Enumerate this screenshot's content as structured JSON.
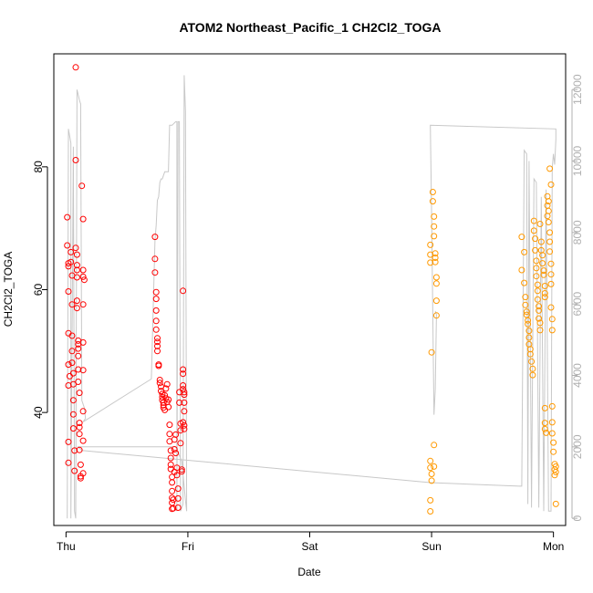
{
  "chart_data": {
    "type": "scatter",
    "title": "ATOM2 Northeast_Pacific_1 CH2Cl2_TOGA",
    "xlabel": "Date",
    "ylabel": "CH2Cl2_TOGA",
    "x_ticks": [
      "Thu",
      "Fri",
      "Sat",
      "Sun",
      "Mon"
    ],
    "x_range_days": [
      -0.1,
      4.1
    ],
    "ylim": [
      21.6,
      98.4
    ],
    "y_ticks": [
      40,
      60,
      80
    ],
    "y2_ticks": [
      0,
      2000,
      4000,
      6000,
      8000,
      10000,
      12000
    ],
    "y2lim": [
      -200,
      13000
    ],
    "grid": false,
    "colors": {
      "red": "#ff0000",
      "orange": "#ff9900",
      "altitude_line": "#c8c8c8",
      "axis": "#000000",
      "right_axis": "#b0b0b0"
    },
    "series": [
      {
        "color": "#ff0000",
        "points": [
          [
            0.01,
            71.8
          ],
          [
            0.01,
            67.2
          ],
          [
            0.02,
            64.3
          ],
          [
            0.02,
            63.8
          ],
          [
            0.02,
            59.7
          ],
          [
            0.02,
            52.9
          ],
          [
            0.02,
            47.8
          ],
          [
            0.03,
            45.9
          ],
          [
            0.02,
            44.4
          ],
          [
            0.02,
            35.2
          ],
          [
            0.02,
            31.8
          ],
          [
            0.04,
            66.1
          ],
          [
            0.04,
            64.5
          ],
          [
            0.05,
            62.3
          ],
          [
            0.05,
            57.6
          ],
          [
            0.05,
            52.5
          ],
          [
            0.05,
            50.0
          ],
          [
            0.05,
            48.1
          ],
          [
            0.06,
            46.4
          ],
          [
            0.06,
            44.6
          ],
          [
            0.06,
            42.0
          ],
          [
            0.06,
            39.7
          ],
          [
            0.06,
            37.4
          ],
          [
            0.07,
            33.8
          ],
          [
            0.07,
            30.5
          ],
          [
            0.08,
            96.2
          ],
          [
            0.08,
            81.1
          ],
          [
            0.08,
            66.8
          ],
          [
            0.09,
            65.7
          ],
          [
            0.09,
            64.0
          ],
          [
            0.09,
            63.2
          ],
          [
            0.09,
            62.0
          ],
          [
            0.09,
            58.2
          ],
          [
            0.09,
            57.0
          ],
          [
            0.1,
            51.7
          ],
          [
            0.1,
            51.1
          ],
          [
            0.1,
            50.4
          ],
          [
            0.1,
            49.2
          ],
          [
            0.1,
            47.0
          ],
          [
            0.1,
            45.0
          ],
          [
            0.11,
            43.2
          ],
          [
            0.11,
            38.3
          ],
          [
            0.11,
            37.6
          ],
          [
            0.11,
            36.5
          ],
          [
            0.11,
            33.9
          ],
          [
            0.12,
            31.5
          ],
          [
            0.12,
            29.6
          ],
          [
            0.12,
            29.3
          ],
          [
            0.13,
            76.9
          ],
          [
            0.14,
            71.5
          ],
          [
            0.14,
            63.2
          ],
          [
            0.14,
            62.1
          ],
          [
            0.15,
            61.6
          ],
          [
            0.14,
            57.6
          ],
          [
            0.14,
            51.4
          ],
          [
            0.14,
            46.9
          ],
          [
            0.14,
            40.2
          ],
          [
            0.14,
            35.4
          ],
          [
            0.14,
            30.1
          ],
          [
            0.73,
            68.6
          ],
          [
            0.73,
            65.0
          ],
          [
            0.73,
            62.8
          ],
          [
            0.74,
            59.6
          ],
          [
            0.74,
            58.5
          ],
          [
            0.74,
            56.6
          ],
          [
            0.74,
            54.9
          ],
          [
            0.74,
            53.5
          ],
          [
            0.75,
            52.1
          ],
          [
            0.75,
            51.5
          ],
          [
            0.75,
            50.8
          ],
          [
            0.75,
            50.0
          ],
          [
            0.76,
            47.8
          ],
          [
            0.76,
            47.6
          ],
          [
            0.77,
            45.3
          ],
          [
            0.77,
            44.8
          ],
          [
            0.78,
            44.2
          ],
          [
            0.78,
            43.5
          ],
          [
            0.79,
            43.0
          ],
          [
            0.79,
            42.5
          ],
          [
            0.79,
            42.0
          ],
          [
            0.8,
            41.6
          ],
          [
            0.8,
            41.2
          ],
          [
            0.8,
            40.8
          ],
          [
            0.81,
            40.4
          ],
          [
            0.81,
            42.8
          ],
          [
            0.82,
            43.9
          ],
          [
            0.82,
            42.3
          ],
          [
            0.83,
            41.7
          ],
          [
            0.83,
            44.6
          ],
          [
            0.84,
            42.1
          ],
          [
            0.84,
            40.9
          ],
          [
            0.85,
            38.0
          ],
          [
            0.85,
            36.5
          ],
          [
            0.85,
            35.3
          ],
          [
            0.86,
            33.8
          ],
          [
            0.86,
            32.6
          ],
          [
            0.86,
            31.5
          ],
          [
            0.86,
            30.8
          ],
          [
            0.87,
            29.5
          ],
          [
            0.87,
            28.6
          ],
          [
            0.87,
            27.2
          ],
          [
            0.87,
            26.1
          ],
          [
            0.87,
            25.3
          ],
          [
            0.87,
            24.3
          ],
          [
            0.88,
            25.8
          ],
          [
            0.88,
            24.4
          ],
          [
            0.89,
            30.3
          ],
          [
            0.89,
            34.0
          ],
          [
            0.89,
            35.6
          ],
          [
            0.9,
            36.4
          ],
          [
            0.9,
            33.4
          ],
          [
            0.91,
            31.0
          ],
          [
            0.91,
            29.8
          ],
          [
            0.92,
            27.6
          ],
          [
            0.92,
            26.0
          ],
          [
            0.92,
            24.5
          ],
          [
            0.93,
            43.3
          ],
          [
            0.93,
            41.6
          ],
          [
            0.94,
            38.2
          ],
          [
            0.94,
            37.1
          ],
          [
            0.94,
            35.0
          ],
          [
            0.95,
            30.7
          ],
          [
            0.95,
            30.4
          ],
          [
            0.96,
            59.8
          ],
          [
            0.96,
            47.0
          ],
          [
            0.96,
            46.3
          ],
          [
            0.96,
            44.4
          ],
          [
            0.96,
            43.8
          ],
          [
            0.97,
            43.3
          ],
          [
            0.97,
            42.9
          ],
          [
            0.97,
            41.6
          ],
          [
            0.97,
            40.2
          ],
          [
            0.96,
            38.4
          ],
          [
            0.97,
            37.9
          ],
          [
            0.97,
            37.3
          ]
        ]
      },
      {
        "color": "#ff9900",
        "points": [
          [
            2.99,
            67.3
          ],
          [
            2.99,
            65.7
          ],
          [
            2.99,
            64.4
          ],
          [
            3.0,
            49.8
          ],
          [
            2.99,
            32.1
          ],
          [
            2.99,
            31.0
          ],
          [
            3.0,
            30.0
          ],
          [
            3.0,
            28.9
          ],
          [
            2.99,
            25.7
          ],
          [
            2.99,
            23.9
          ],
          [
            3.01,
            75.9
          ],
          [
            3.01,
            74.4
          ],
          [
            3.02,
            71.9
          ],
          [
            3.02,
            70.3
          ],
          [
            3.02,
            68.7
          ],
          [
            3.03,
            65.9
          ],
          [
            3.03,
            65.2
          ],
          [
            3.03,
            64.5
          ],
          [
            3.04,
            62.0
          ],
          [
            3.04,
            61.0
          ],
          [
            3.04,
            58.2
          ],
          [
            3.04,
            55.8
          ],
          [
            3.02,
            34.7
          ],
          [
            3.02,
            31.2
          ],
          [
            3.74,
            68.6
          ],
          [
            3.76,
            66.1
          ],
          [
            3.74,
            63.2
          ],
          [
            3.76,
            61.1
          ],
          [
            3.77,
            58.8
          ],
          [
            3.77,
            57.5
          ],
          [
            3.78,
            56.4
          ],
          [
            3.78,
            55.9
          ],
          [
            3.79,
            55.0
          ],
          [
            3.79,
            54.4
          ],
          [
            3.8,
            53.3
          ],
          [
            3.8,
            52.2
          ],
          [
            3.8,
            51.1
          ],
          [
            3.81,
            50.3
          ],
          [
            3.81,
            49.5
          ],
          [
            3.82,
            48.3
          ],
          [
            3.83,
            47.1
          ],
          [
            3.83,
            46.1
          ],
          [
            3.84,
            71.2
          ],
          [
            3.84,
            69.6
          ],
          [
            3.85,
            68.3
          ],
          [
            3.85,
            66.4
          ],
          [
            3.86,
            64.7
          ],
          [
            3.86,
            63.5
          ],
          [
            3.86,
            62.2
          ],
          [
            3.87,
            60.8
          ],
          [
            3.87,
            59.8
          ],
          [
            3.87,
            58.4
          ],
          [
            3.88,
            57.3
          ],
          [
            3.88,
            56.6
          ],
          [
            3.88,
            55.3
          ],
          [
            3.89,
            54.6
          ],
          [
            3.89,
            53.4
          ],
          [
            3.89,
            70.7
          ],
          [
            3.9,
            67.8
          ],
          [
            3.9,
            66.4
          ],
          [
            3.91,
            65.6
          ],
          [
            3.91,
            64.3
          ],
          [
            3.92,
            63.1
          ],
          [
            3.92,
            62.4
          ],
          [
            3.93,
            60.6
          ],
          [
            3.93,
            59.4
          ],
          [
            3.93,
            58.8
          ],
          [
            3.93,
            40.7
          ],
          [
            3.93,
            38.3
          ],
          [
            3.93,
            37.3
          ],
          [
            3.94,
            36.7
          ],
          [
            3.95,
            72.0
          ],
          [
            3.95,
            73.7
          ],
          [
            3.95,
            75.2
          ],
          [
            3.96,
            74.4
          ],
          [
            3.96,
            72.8
          ],
          [
            3.96,
            71.0
          ],
          [
            3.97,
            69.3
          ],
          [
            3.97,
            67.8
          ],
          [
            3.97,
            66.2
          ],
          [
            3.98,
            64.2
          ],
          [
            3.98,
            62.5
          ],
          [
            3.98,
            60.9
          ],
          [
            3.97,
            79.7
          ],
          [
            3.98,
            77.1
          ],
          [
            3.98,
            57.1
          ],
          [
            3.99,
            55.2
          ],
          [
            3.99,
            53.4
          ],
          [
            3.99,
            41.0
          ],
          [
            3.99,
            38.4
          ],
          [
            3.99,
            36.6
          ],
          [
            4.0,
            35.1
          ],
          [
            4.0,
            33.6
          ],
          [
            4.01,
            31.6
          ],
          [
            4.01,
            30.7
          ],
          [
            4.01,
            29.8
          ],
          [
            4.02,
            31.2
          ],
          [
            4.02,
            30.3
          ],
          [
            4.02,
            25.1
          ]
        ]
      },
      {
        "axis": "right",
        "color": "#c8c8c8",
        "points": [
          [
            0.01,
            0
          ],
          [
            0.02,
            10900
          ],
          [
            0.04,
            10500
          ],
          [
            0.04,
            0
          ],
          [
            0.06,
            10400
          ],
          [
            0.07,
            200
          ],
          [
            0.08,
            0
          ],
          [
            0.09,
            12000
          ],
          [
            0.11,
            11700
          ],
          [
            0.12,
            11600
          ],
          [
            0.13,
            3300
          ],
          [
            0.15,
            3100
          ],
          [
            0.16,
            2800
          ],
          [
            0.14,
            2700
          ],
          [
            0.7,
            3900
          ],
          [
            0.73,
            7800
          ],
          [
            0.74,
            8200
          ],
          [
            0.75,
            8900
          ],
          [
            0.76,
            9000
          ],
          [
            0.77,
            9400
          ],
          [
            0.78,
            9500
          ],
          [
            0.79,
            9500
          ],
          [
            0.8,
            9600
          ],
          [
            0.81,
            9700
          ],
          [
            0.82,
            9700
          ],
          [
            0.83,
            9700
          ],
          [
            0.84,
            9700
          ],
          [
            0.85,
            11000
          ],
          [
            0.87,
            11000
          ],
          [
            0.9,
            11100
          ],
          [
            0.91,
            11100
          ],
          [
            0.91,
            200
          ],
          [
            0.92,
            11100
          ],
          [
            0.93,
            11100
          ],
          [
            0.94,
            200
          ],
          [
            0.96,
            400
          ],
          [
            0.97,
            12400
          ],
          [
            0.98,
            11400
          ],
          [
            0.99,
            200
          ],
          [
            0.98,
            500
          ],
          [
            0.95,
            1600
          ],
          [
            0.9,
            2000
          ],
          [
            0.1,
            2000
          ],
          [
            0.13,
            1900
          ],
          [
            2.99,
            1000
          ],
          [
            3.72,
            900
          ],
          [
            3.74,
            900
          ],
          [
            3.76,
            10300
          ],
          [
            3.78,
            10200
          ],
          [
            3.79,
            400
          ],
          [
            3.8,
            10000
          ],
          [
            3.82,
            300
          ],
          [
            3.84,
            9500
          ],
          [
            3.86,
            9400
          ],
          [
            3.88,
            300
          ],
          [
            3.9,
            9000
          ],
          [
            3.92,
            200
          ],
          [
            3.94,
            9200
          ],
          [
            3.96,
            200
          ],
          [
            3.98,
            200
          ],
          [
            3.99,
            9800
          ],
          [
            4.0,
            10200
          ],
          [
            4.01,
            9900
          ],
          [
            4.02,
            10600
          ],
          [
            4.02,
            10900
          ],
          [
            2.99,
            11000
          ],
          [
            3.0,
            8500
          ],
          [
            3.02,
            2900
          ],
          [
            3.03,
            3600
          ],
          [
            3.04,
            5700
          ],
          [
            3.03,
            5800
          ]
        ]
      }
    ]
  }
}
